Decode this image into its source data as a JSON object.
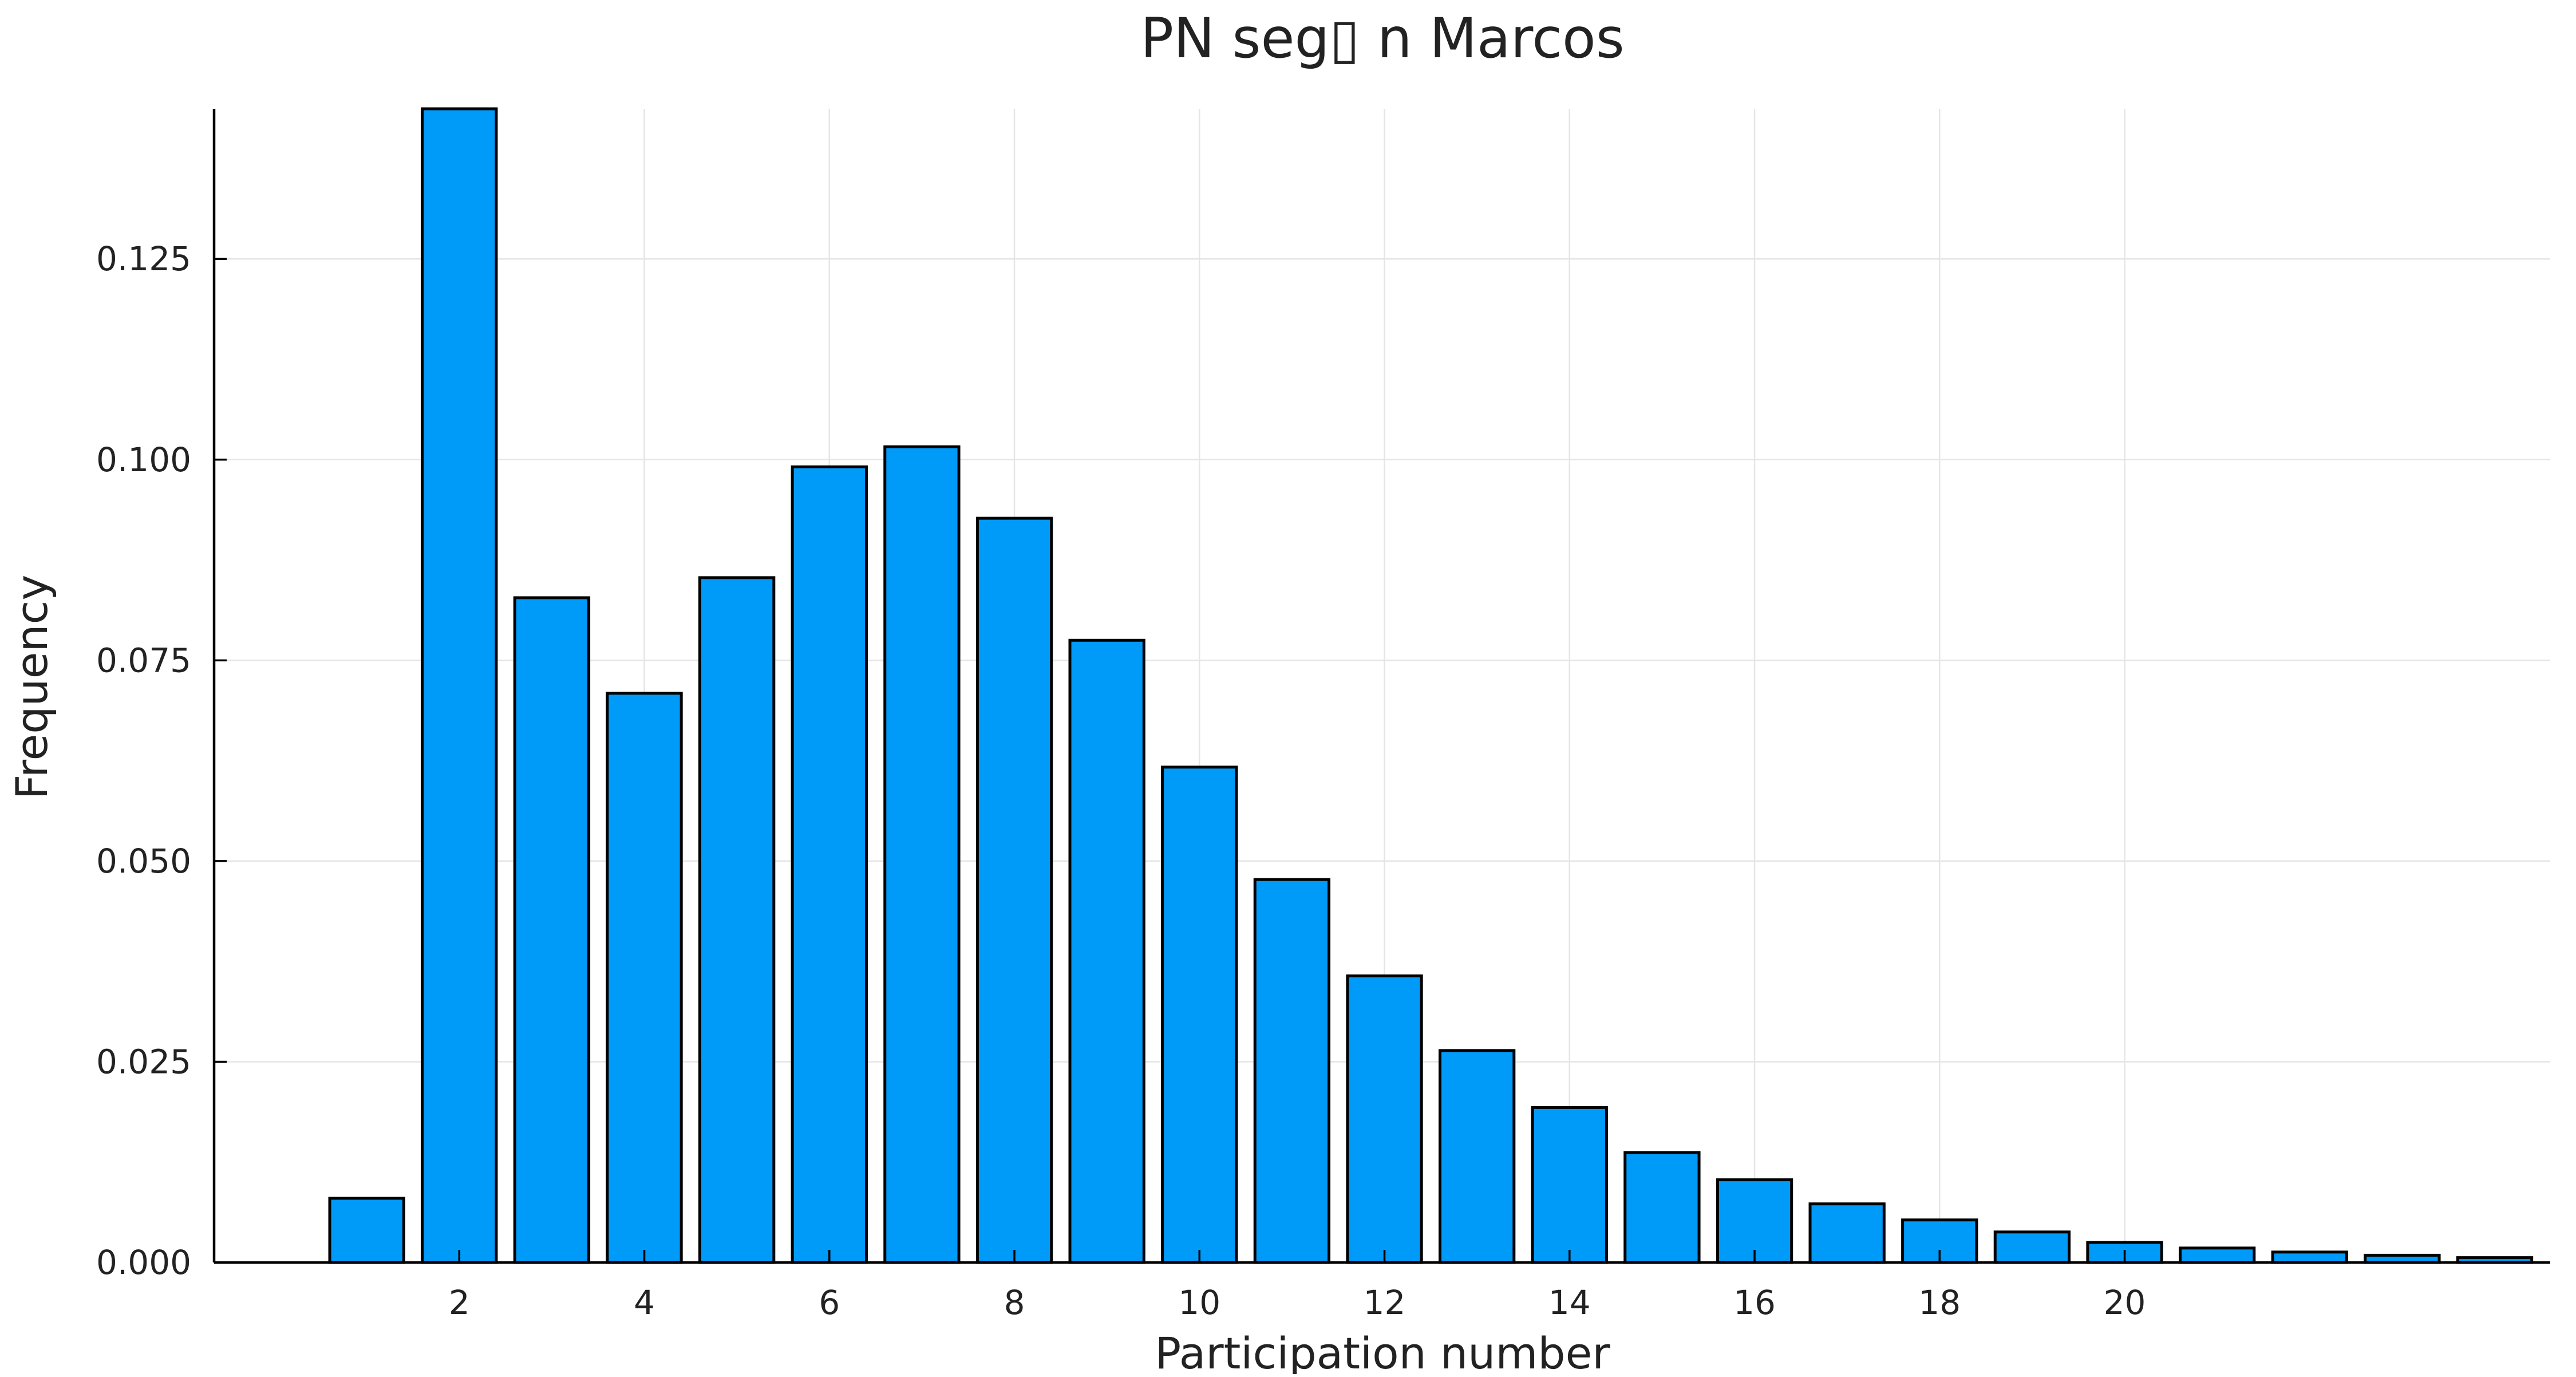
{
  "chart_data": {
    "type": "bar",
    "title": "PN seg▯ n Marcos",
    "xlabel": "Participation number",
    "ylabel": "Frequency",
    "x": [
      1,
      2,
      3,
      4,
      5,
      6,
      7,
      8,
      9,
      10,
      11,
      12,
      13,
      14,
      15,
      16,
      17,
      18,
      19,
      20,
      21,
      22,
      23,
      24
    ],
    "values": [
      0.008,
      0.144,
      0.0828,
      0.0709,
      0.0853,
      0.0991,
      0.1016,
      0.0927,
      0.0775,
      0.0617,
      0.0477,
      0.0357,
      0.0264,
      0.0193,
      0.0137,
      0.0103,
      0.0073,
      0.0053,
      0.0038,
      0.0025,
      0.0018,
      0.0013,
      0.0009,
      0.0006
    ],
    "xticks": [
      2,
      4,
      6,
      8,
      10,
      12,
      14,
      16,
      18,
      20
    ],
    "xtick_labels": [
      "2",
      "4",
      "6",
      "8",
      "10",
      "12",
      "14",
      "16",
      "18",
      "20"
    ],
    "yticks": [
      0,
      0.025,
      0.05,
      0.075,
      0.1,
      0.125
    ],
    "ytick_labels": [
      "0.000",
      "0.025",
      "0.050",
      "0.075",
      "0.100",
      "0.125"
    ],
    "xlim": [
      -0.65,
      24.6
    ],
    "ylim": [
      0,
      0.1437
    ],
    "bar_width": 0.8,
    "grid": true,
    "legend": "none",
    "colors": {
      "bar_fill": "#009af9",
      "bar_edge": "#000000",
      "grid": "#e5e5e5",
      "axis": "#000000"
    }
  }
}
